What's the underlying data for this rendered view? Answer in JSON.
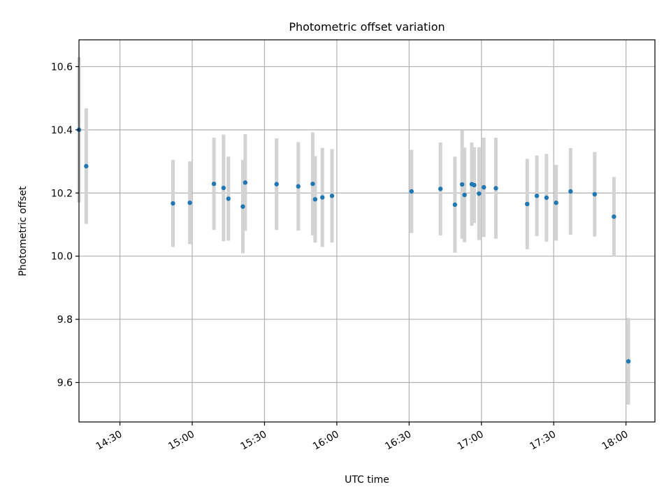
{
  "chart_data": {
    "type": "scatter",
    "title": "Photometric offset variation",
    "xlabel": "UTC time",
    "ylabel": "Photometric offset",
    "xlim": [
      "14:13",
      "18:12"
    ],
    "ylim": [
      9.475,
      10.685
    ],
    "xticks": [
      "14:30",
      "15:00",
      "15:30",
      "16:00",
      "16:30",
      "17:00",
      "17:30",
      "18:00"
    ],
    "yticks": [
      "9.6",
      "9.8",
      "10.0",
      "10.2",
      "10.4",
      "10.6"
    ],
    "grid": true,
    "colors": {
      "points": "#1f77b4",
      "errorbars": "#d3d3d3",
      "grid": "#b0b0b0"
    },
    "points": [
      {
        "x": "14:13",
        "y": 10.4,
        "err": 0.23
      },
      {
        "x": "14:16",
        "y": 10.285,
        "err": 0.183
      },
      {
        "x": "14:52",
        "y": 10.167,
        "err": 0.138
      },
      {
        "x": "14:59",
        "y": 10.169,
        "err": 0.131
      },
      {
        "x": "15:09",
        "y": 10.229,
        "err": 0.146
      },
      {
        "x": "15:13",
        "y": 10.216,
        "err": 0.169
      },
      {
        "x": "15:15",
        "y": 10.182,
        "err": 0.133
      },
      {
        "x": "15:21",
        "y": 10.157,
        "err": 0.148
      },
      {
        "x": "15:22",
        "y": 10.233,
        "err": 0.153
      },
      {
        "x": "15:35",
        "y": 10.228,
        "err": 0.145
      },
      {
        "x": "15:44",
        "y": 10.221,
        "err": 0.14
      },
      {
        "x": "15:50",
        "y": 10.229,
        "err": 0.163
      },
      {
        "x": "15:51",
        "y": 10.18,
        "err": 0.137
      },
      {
        "x": "15:54",
        "y": 10.186,
        "err": 0.157
      },
      {
        "x": "15:58",
        "y": 10.191,
        "err": 0.148
      },
      {
        "x": "16:31",
        "y": 10.205,
        "err": 0.132
      },
      {
        "x": "16:43",
        "y": 10.213,
        "err": 0.147
      },
      {
        "x": "16:49",
        "y": 10.163,
        "err": 0.152
      },
      {
        "x": "16:52",
        "y": 10.227,
        "err": 0.172
      },
      {
        "x": "16:53",
        "y": 10.194,
        "err": 0.15
      },
      {
        "x": "16:56",
        "y": 10.228,
        "err": 0.132
      },
      {
        "x": "16:57",
        "y": 10.225,
        "err": 0.12
      },
      {
        "x": "16:59",
        "y": 10.198,
        "err": 0.147
      },
      {
        "x": "17:01",
        "y": 10.218,
        "err": 0.157
      },
      {
        "x": "17:06",
        "y": 10.215,
        "err": 0.16
      },
      {
        "x": "17:19",
        "y": 10.165,
        "err": 0.143
      },
      {
        "x": "17:23",
        "y": 10.191,
        "err": 0.128
      },
      {
        "x": "17:27",
        "y": 10.185,
        "err": 0.139
      },
      {
        "x": "17:31",
        "y": 10.169,
        "err": 0.12
      },
      {
        "x": "17:37",
        "y": 10.205,
        "err": 0.137
      },
      {
        "x": "17:47",
        "y": 10.196,
        "err": 0.134
      },
      {
        "x": "17:55",
        "y": 10.125,
        "err": 0.126
      },
      {
        "x": "18:01",
        "y": 9.667,
        "err": 0.137
      }
    ]
  }
}
